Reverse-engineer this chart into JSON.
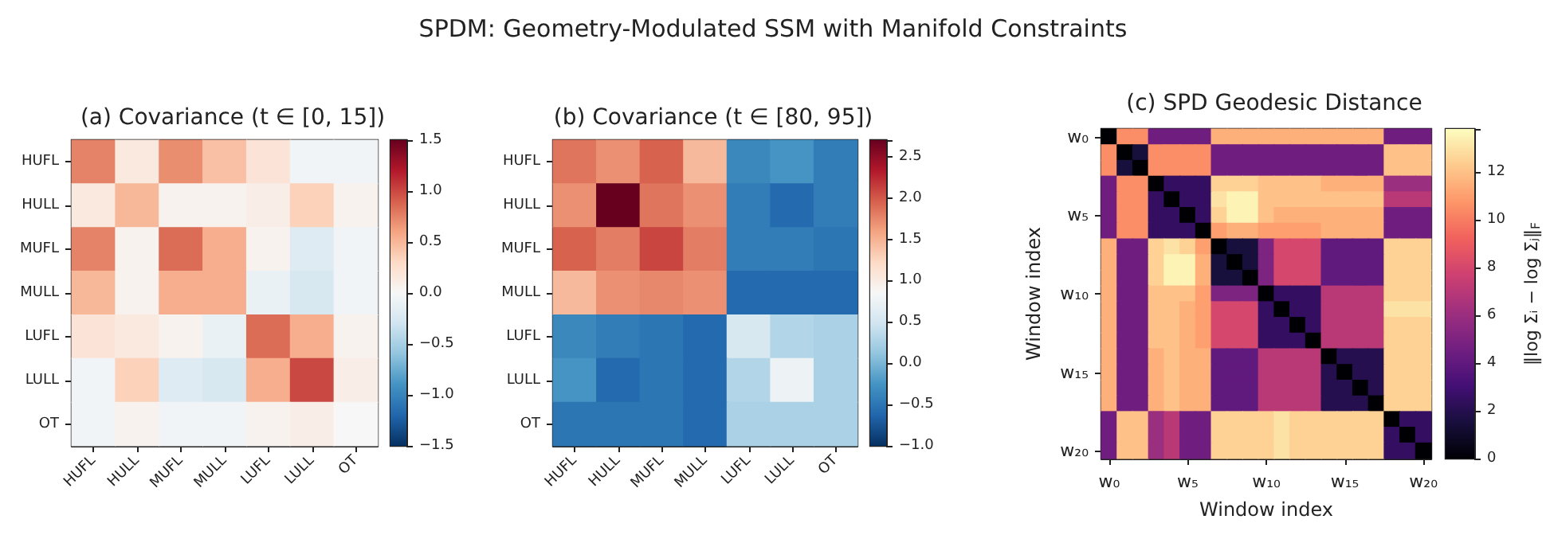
{
  "chart_data": [
    {
      "type": "other",
      "title": "SPDM: Geometry-Modulated SSM with Manifold Constraints"
    },
    {
      "type": "heatmap",
      "title": "(a) Covariance (t ∈ [0, 15])",
      "categories": [
        "HUFL",
        "HULL",
        "MUFL",
        "MULL",
        "LUFL",
        "LULL",
        "OT"
      ],
      "y_categories": [
        "HUFL",
        "HULL",
        "MUFL",
        "MULL",
        "LUFL",
        "LULL",
        "OT"
      ],
      "cells": [
        [
          0.75,
          0.15,
          0.7,
          0.45,
          0.2,
          -0.05,
          -0.05
        ],
        [
          0.15,
          0.5,
          0.05,
          0.05,
          0.1,
          0.35,
          0.05
        ],
        [
          0.75,
          0.05,
          0.85,
          0.55,
          0.05,
          -0.2,
          -0.05
        ],
        [
          0.5,
          0.05,
          0.55,
          0.55,
          -0.1,
          -0.25,
          -0.05
        ],
        [
          0.2,
          0.15,
          0.05,
          -0.1,
          0.85,
          0.55,
          0.05
        ],
        [
          -0.05,
          0.35,
          -0.2,
          -0.25,
          0.55,
          1.0,
          0.1
        ],
        [
          -0.05,
          0.05,
          -0.05,
          -0.05,
          0.05,
          0.1,
          0.0
        ]
      ],
      "clim": [
        -1.5,
        1.5
      ],
      "cticks": [
        {
          "value": -1.5,
          "label": "−1.5"
        },
        {
          "value": -1.0,
          "label": "−1.0"
        },
        {
          "value": -0.5,
          "label": "−0.5"
        },
        {
          "value": 0,
          "label": "0.0"
        },
        {
          "value": 0.5,
          "label": "0.5"
        },
        {
          "value": 1.0,
          "label": "1.0"
        },
        {
          "value": 1.5,
          "label": "1.5"
        }
      ]
    },
    {
      "type": "heatmap",
      "title": "(b) Covariance (t ∈ [80, 95])",
      "categories": [
        "HUFL",
        "HULL",
        "MUFL",
        "MULL",
        "LUFL",
        "LULL",
        "OT"
      ],
      "y_categories": [
        "HUFL",
        "HULL",
        "MUFL",
        "MULL",
        "LUFL",
        "LULL",
        "OT"
      ],
      "cells": [
        [
          1.85,
          1.7,
          1.95,
          1.45,
          -0.35,
          -0.25,
          -0.45
        ],
        [
          1.7,
          2.7,
          1.85,
          1.7,
          -0.45,
          -0.6,
          -0.45
        ],
        [
          1.95,
          1.8,
          2.1,
          1.8,
          -0.45,
          -0.45,
          -0.5
        ],
        [
          1.45,
          1.7,
          1.75,
          1.7,
          -0.6,
          -0.6,
          -0.6
        ],
        [
          -0.35,
          -0.45,
          -0.5,
          -0.6,
          0.55,
          0.3,
          0.25
        ],
        [
          -0.25,
          -0.6,
          -0.5,
          -0.6,
          0.3,
          0.75,
          0.25
        ],
        [
          -0.5,
          -0.5,
          -0.5,
          -0.6,
          0.25,
          0.25,
          0.25
        ]
      ],
      "clim": [
        -1.0,
        2.7
      ],
      "cticks": [
        {
          "value": -1.0,
          "label": "−1.0"
        },
        {
          "value": -0.5,
          "label": "−0.5"
        },
        {
          "value": 0,
          "label": "0.0"
        },
        {
          "value": 0.5,
          "label": "0.5"
        },
        {
          "value": 1.0,
          "label": "1.0"
        },
        {
          "value": 1.5,
          "label": "1.5"
        },
        {
          "value": 2.0,
          "label": "2.0"
        },
        {
          "value": 2.5,
          "label": "2.5"
        }
      ]
    },
    {
      "type": "heatmap",
      "title": "(c) SPD Geodesic Distance",
      "xlabel": "Window index",
      "ylabel": "Window index",
      "clabel": "‖log Σᵢ − log Σⱼ‖$_{F}$",
      "categories": [
        "w₀",
        null,
        null,
        null,
        null,
        "w₅",
        null,
        null,
        null,
        null,
        "w₁₀",
        null,
        null,
        null,
        null,
        "w₁₅",
        null,
        null,
        null,
        null,
        "w₂₀"
      ],
      "y_categories": [
        "w₀",
        null,
        null,
        null,
        null,
        "w₅",
        null,
        null,
        null,
        null,
        "w₁₀",
        null,
        null,
        null,
        null,
        "w₁₅",
        null,
        null,
        null,
        null,
        "w₂₀"
      ],
      "cells": [
        [
          0,
          10.5,
          10.5,
          4.5,
          4.5,
          4.5,
          4.5,
          11.5,
          11.5,
          11.5,
          11.5,
          11.5,
          11.5,
          11.5,
          11.5,
          11.5,
          11.5,
          11.5,
          4.5,
          4.5,
          4.5
        ],
        [
          10.5,
          0,
          1.5,
          10.5,
          10.5,
          10.5,
          10.5,
          4.5,
          4.5,
          4.5,
          4.5,
          4.5,
          4.5,
          4.5,
          4.5,
          4.5,
          4.5,
          4.5,
          12,
          12,
          12
        ],
        [
          10.5,
          1.5,
          0,
          10.5,
          10.5,
          10.5,
          10.5,
          4.5,
          4.5,
          4.5,
          4.5,
          4.5,
          4.5,
          4.5,
          4.5,
          4.5,
          4.5,
          4.5,
          12,
          12,
          12
        ],
        [
          4.5,
          10.5,
          10.5,
          0,
          2.5,
          2.5,
          2.5,
          12.5,
          12.5,
          12.5,
          12,
          12,
          12,
          12,
          11.5,
          11.5,
          11.5,
          11.5,
          6,
          6,
          6
        ],
        [
          4.5,
          10.5,
          10.5,
          2.5,
          0,
          2.5,
          2.5,
          13,
          13.5,
          13.5,
          12,
          12,
          12,
          12,
          12,
          12,
          12,
          12,
          7,
          7,
          7
        ],
        [
          4.5,
          10.5,
          10.5,
          2.5,
          2.5,
          0,
          2.5,
          12.5,
          13.5,
          13.5,
          12,
          11.5,
          11.5,
          11.5,
          11.5,
          11.5,
          11.5,
          11.5,
          4.5,
          4.5,
          4.5
        ],
        [
          4.5,
          10.5,
          10.5,
          2.5,
          2.5,
          2.5,
          0,
          11,
          11.5,
          11.5,
          11,
          11,
          11,
          11,
          11.5,
          11.5,
          11.5,
          11.5,
          4.5,
          4.5,
          4.5
        ],
        [
          11.5,
          4.5,
          4.5,
          12.5,
          13,
          12.5,
          11,
          0,
          1.5,
          1.5,
          5,
          8,
          8,
          8,
          4,
          4,
          4,
          4,
          12.5,
          12.5,
          12.5
        ],
        [
          11.5,
          4.5,
          4.5,
          12.5,
          13.5,
          13.5,
          11.5,
          1.5,
          0,
          1.5,
          5,
          8,
          8,
          8,
          4,
          4,
          4,
          4,
          12.5,
          12.5,
          12.5
        ],
        [
          11.5,
          4.5,
          4.5,
          12.5,
          13.5,
          13.5,
          11.5,
          1.5,
          1.5,
          0,
          5,
          8,
          8,
          8,
          4,
          4,
          4,
          4,
          12.5,
          12.5,
          12.5
        ],
        [
          11.5,
          4.5,
          4.5,
          12,
          12,
          12,
          11,
          5,
          5,
          5,
          0,
          2.5,
          2.5,
          2.5,
          7,
          7,
          7,
          7,
          12.5,
          12.5,
          12.5
        ],
        [
          11.5,
          4.5,
          4.5,
          12,
          12,
          11.5,
          11,
          8,
          8,
          8,
          2.5,
          0,
          2.5,
          2.5,
          7,
          7,
          7,
          7,
          13,
          13,
          13
        ],
        [
          11.5,
          4.5,
          4.5,
          12,
          12,
          11.5,
          11,
          8,
          8,
          8,
          2.5,
          2.5,
          0,
          2.5,
          7,
          7,
          7,
          7,
          12.5,
          12.5,
          12.5
        ],
        [
          11.5,
          4.5,
          4.5,
          12,
          12,
          11.5,
          11,
          8,
          8,
          8,
          2.5,
          2.5,
          2.5,
          0,
          7,
          7,
          7,
          7,
          12.5,
          12.5,
          12.5
        ],
        [
          11.5,
          4.5,
          4.5,
          11.5,
          12,
          11.5,
          11.5,
          4,
          4,
          4,
          7,
          7,
          7,
          7,
          0,
          2,
          2,
          2,
          12.5,
          12.5,
          12.5
        ],
        [
          11.5,
          4.5,
          4.5,
          11.5,
          12,
          11.5,
          11.5,
          4,
          4,
          4,
          7,
          7,
          7,
          7,
          2,
          0,
          2,
          2,
          12.5,
          12.5,
          12.5
        ],
        [
          11.5,
          4.5,
          4.5,
          11.5,
          12,
          11.5,
          11.5,
          4,
          4,
          4,
          7,
          7,
          7,
          7,
          2,
          2,
          0,
          2,
          12.5,
          12.5,
          12.5
        ],
        [
          11.5,
          4.5,
          4.5,
          11.5,
          12,
          11.5,
          11.5,
          4,
          4,
          4,
          7,
          7,
          7,
          7,
          2,
          2,
          2,
          0,
          12.5,
          12.5,
          12.5
        ],
        [
          4.5,
          12,
          12,
          6,
          7,
          4.5,
          4.5,
          12.5,
          12.5,
          12.5,
          12.5,
          13,
          12.5,
          12.5,
          12.5,
          12.5,
          12.5,
          12.5,
          0,
          2.5,
          2.5
        ],
        [
          4.5,
          12,
          12,
          6,
          7,
          4.5,
          4.5,
          12.5,
          12.5,
          12.5,
          12.5,
          13,
          12.5,
          12.5,
          12.5,
          12.5,
          12.5,
          12.5,
          2.5,
          0,
          2.5
        ],
        [
          4.5,
          12,
          12,
          6,
          7,
          4.5,
          4.5,
          12.5,
          12.5,
          12.5,
          12.5,
          13,
          12.5,
          12.5,
          12.5,
          12.5,
          12.5,
          12.5,
          2.5,
          2.5,
          0
        ]
      ],
      "clim": [
        0,
        13.8
      ],
      "cticks": [
        0,
        2,
        4,
        6,
        8,
        10,
        12
      ]
    }
  ]
}
